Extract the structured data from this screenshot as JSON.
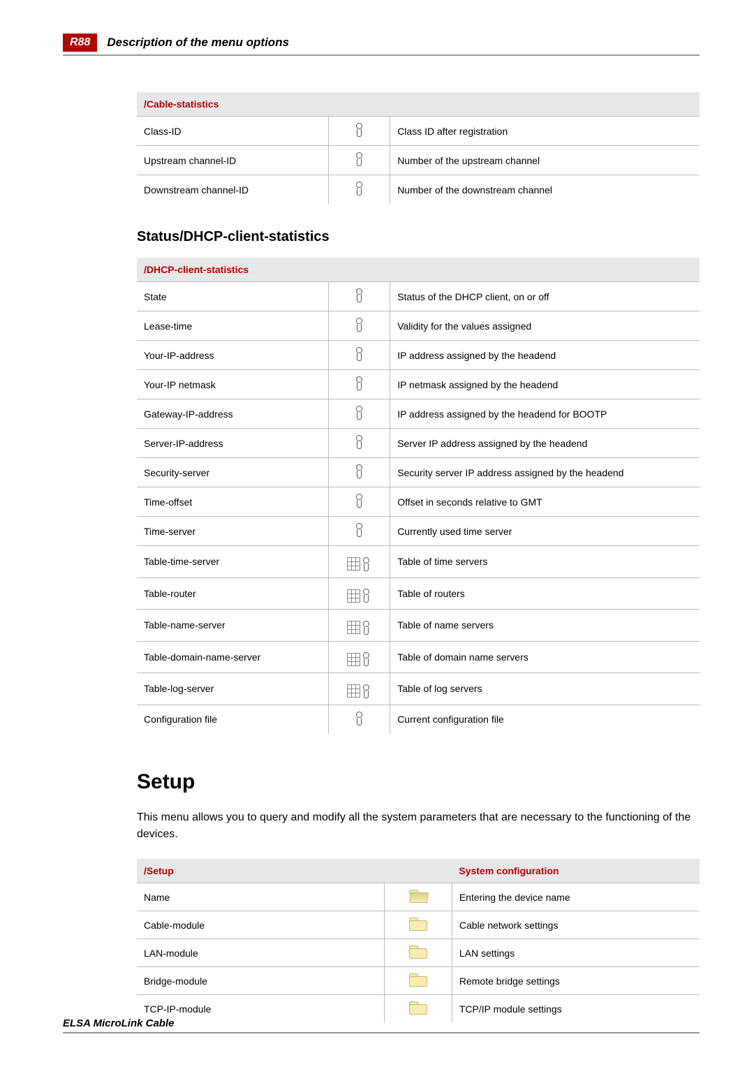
{
  "header": {
    "badge": "R88",
    "title": "Description of the menu options"
  },
  "table_cable": {
    "header": "/Cable-statistics",
    "rows": [
      {
        "name": "Class-ID",
        "icon": "info",
        "desc": "Class ID after registration"
      },
      {
        "name": "Upstream channel-ID",
        "icon": "info",
        "desc": "Number of the upstream channel"
      },
      {
        "name": "Downstream channel-ID",
        "icon": "info",
        "desc": "Number of the downstream channel"
      }
    ]
  },
  "section_dhcp_heading": "Status/DHCP-client-statistics",
  "table_dhcp": {
    "header": "/DHCP-client-statistics",
    "rows": [
      {
        "name": "State",
        "icon": "info",
        "desc": "Status of the DHCP client, on or off"
      },
      {
        "name": "Lease-time",
        "icon": "info",
        "desc": "Validity for the values assigned"
      },
      {
        "name": "Your-IP-address",
        "icon": "info",
        "desc": "IP address assigned by the headend"
      },
      {
        "name": "Your-IP netmask",
        "icon": "info",
        "desc": "IP netmask assigned by the headend"
      },
      {
        "name": "Gateway-IP-address",
        "icon": "info",
        "desc": "IP address assigned by the headend for BOOTP"
      },
      {
        "name": "Server-IP-address",
        "icon": "info",
        "desc": "Server IP address assigned by the headend"
      },
      {
        "name": "Security-server",
        "icon": "info",
        "desc": "Security server IP address assigned by the headend"
      },
      {
        "name": "Time-offset",
        "icon": "info",
        "desc": "Offset in seconds relative to GMT"
      },
      {
        "name": "Time-server",
        "icon": "info",
        "desc": "Currently used time server"
      },
      {
        "name": "Table-time-server",
        "icon": "table",
        "desc": "Table of time servers"
      },
      {
        "name": "Table-router",
        "icon": "table",
        "desc": "Table of routers"
      },
      {
        "name": "Table-name-server",
        "icon": "table",
        "desc": "Table of name servers"
      },
      {
        "name": "Table-domain-name-server",
        "icon": "table",
        "desc": "Table of domain name servers"
      },
      {
        "name": "Table-log-server",
        "icon": "table",
        "desc": "Table of log servers"
      },
      {
        "name": "Configuration file",
        "icon": "info",
        "desc": "Current configuration file"
      }
    ]
  },
  "section_setup_heading": "Setup",
  "setup_para": "This menu allows you to query and modify all the system parameters that are necessary to the functioning of the devices.",
  "table_setup": {
    "header1": "/Setup",
    "header2": "System configuration",
    "rows": [
      {
        "name": "Name",
        "icon": "folder-open",
        "desc": "Entering the device name"
      },
      {
        "name": "Cable-module",
        "icon": "folder",
        "desc": "Cable network settings"
      },
      {
        "name": "LAN-module",
        "icon": "folder",
        "desc": "LAN settings"
      },
      {
        "name": "Bridge-module",
        "icon": "folder",
        "desc": "Remote bridge settings"
      },
      {
        "name": "TCP-IP-module",
        "icon": "folder",
        "desc": "TCP/IP module settings"
      }
    ]
  },
  "footer": "ELSA MicroLink Cable"
}
